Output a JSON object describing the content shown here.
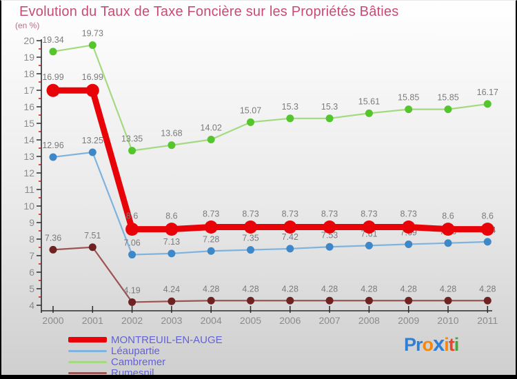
{
  "header": {
    "title": "Evolution du Taux de Taxe Foncière sur les Propriétés Bâties",
    "subtitle": "(en %)"
  },
  "chart_data": {
    "type": "line",
    "title": "Evolution du Taux de Taxe Foncière sur les Propriétés Bâties",
    "unit": "en %",
    "x": [
      2000,
      2001,
      2002,
      2003,
      2004,
      2005,
      2006,
      2007,
      2008,
      2009,
      2010,
      2011
    ],
    "ylim": [
      4,
      20
    ],
    "y_major_step": 1,
    "y_minor_step": 0.5,
    "grid": false,
    "axis_color": "#2c2c2c",
    "minor_tick_color": "#cc1111",
    "series": [
      {
        "name": "Léaupartie",
        "line_color": "#7fb2dc",
        "marker_color": "#3e88c9",
        "line_width": 2.2,
        "marker_radius": 5.5,
        "label_offset": 13,
        "values": [
          12.96,
          13.25,
          7.06,
          7.13,
          7.28,
          7.35,
          7.42,
          7.53,
          7.61,
          7.69,
          7.76,
          7.84
        ]
      },
      {
        "name": "Cambremer",
        "line_color": "#a3da80",
        "marker_color": "#55c52d",
        "line_width": 2.2,
        "marker_radius": 5.5,
        "label_offset": 13,
        "values": [
          19.34,
          19.73,
          13.35,
          13.68,
          14.02,
          15.07,
          15.3,
          15.3,
          15.61,
          15.85,
          15.85,
          16.17
        ]
      },
      {
        "name": "Rumesnil",
        "line_color": "#9c5353",
        "marker_color": "#6e2222",
        "line_width": 2.2,
        "marker_radius": 5.5,
        "label_offset": 13,
        "values": [
          7.36,
          7.51,
          4.19,
          4.24,
          4.28,
          4.28,
          4.28,
          4.28,
          4.28,
          4.28,
          4.28,
          4.28
        ]
      },
      {
        "name": "MONTREUIL-EN-AUGE",
        "line_color": "#e80309",
        "marker_color": "#e80309",
        "line_width": 9,
        "marker_radius": 9.5,
        "label_offset": 15,
        "values": [
          16.99,
          16.99,
          8.6,
          8.6,
          8.73,
          8.73,
          8.73,
          8.73,
          8.73,
          8.73,
          8.6,
          8.6
        ]
      }
    ],
    "legend_position": "bottom-left"
  },
  "legend": {
    "items": [
      {
        "label": "MONTREUIL-EN-AUGE",
        "color": "#e80309",
        "swatch_height": 8
      },
      {
        "label": "Léaupartie",
        "color": "#7fb2dc",
        "swatch_height": 3
      },
      {
        "label": "Cambremer",
        "color": "#a3da80",
        "swatch_height": 3
      },
      {
        "label": "Rumesnil",
        "color": "#9c5353",
        "swatch_height": 3
      }
    ]
  },
  "logo": {
    "text": "Proxiti",
    "letters": [
      {
        "ch": "P",
        "color": "#2f7fd6"
      },
      {
        "ch": "r",
        "color": "#2f7fd6"
      },
      {
        "ch": "o",
        "color": "#f5870f"
      },
      {
        "ch": "x",
        "color": "#2f7fd6",
        "big": true
      },
      {
        "ch": "i",
        "color": "#f5870f"
      },
      {
        "ch": "t",
        "color": "#e8452c"
      },
      {
        "ch": "i",
        "color": "#3faa36"
      }
    ]
  }
}
